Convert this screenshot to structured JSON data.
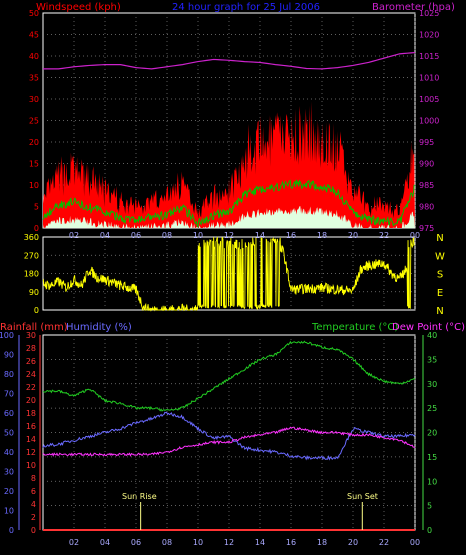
{
  "header": {
    "left_label": "Windspeed (kph)",
    "center_label": "24 hour graph for 25 Jul 2006",
    "right_label": "Barometer (hpa)"
  },
  "colors": {
    "background": "#000000",
    "frame": "#FFFFFF",
    "grid": "#808080",
    "wind": "#FF0000",
    "gust_fill": "#FF0000",
    "wind_avg": "#00C000",
    "wind_min": "#E0FFE0",
    "barometer": "#CC22CC",
    "direction": "#FFFF00",
    "rainfall": "#FF3333",
    "humidity": "#6A6AFF",
    "temperature": "#22CC22",
    "dew_point": "#FF33FF",
    "center_label": "#2222FF",
    "sun_marker": "#FFFF88",
    "temp_axis": "#44DD44"
  },
  "time_ticks": [
    "02",
    "04",
    "06",
    "08",
    "10",
    "12",
    "14",
    "16",
    "18",
    "20",
    "22",
    "00"
  ],
  "panel_top": {
    "left_ticks": [
      "0",
      "5",
      "10",
      "15",
      "20",
      "25",
      "30",
      "35",
      "40",
      "45",
      "50"
    ],
    "right_ticks": [
      "975",
      "980",
      "985",
      "990",
      "995",
      "1000",
      "1005",
      "1010",
      "1015",
      "1020",
      "1025"
    ]
  },
  "panel_mid": {
    "left_ticks": [
      "0",
      "90",
      "180",
      "270",
      "360"
    ],
    "direction_letters": [
      "N",
      "W",
      "S",
      "E",
      "N"
    ]
  },
  "panel_bottom": {
    "rain_label": "Rainfall (mm)",
    "humidity_label": "Humidity (%)",
    "temp_label": "Temperature (°C)",
    "dew_label": "Dew Point (°C)",
    "rain_ticks": [
      "0",
      "2",
      "4",
      "6",
      "8",
      "10",
      "12",
      "14",
      "16",
      "18",
      "20",
      "22",
      "24",
      "26",
      "28",
      "30"
    ],
    "humidity_ticks": [
      "0",
      "10",
      "20",
      "30",
      "40",
      "50",
      "60",
      "70",
      "80",
      "90",
      "100"
    ],
    "temp_ticks": [
      "0",
      "5",
      "10",
      "15",
      "20",
      "25",
      "30",
      "35",
      "40"
    ],
    "sun_rise": "Sun Rise",
    "sun_set": "Sun Set"
  },
  "chart_data": [
    {
      "type": "area",
      "name": "wind_barometer",
      "x_hours": [
        0,
        1,
        2,
        3,
        4,
        5,
        6,
        7,
        8,
        9,
        10,
        11,
        12,
        13,
        14,
        15,
        16,
        17,
        18,
        19,
        20,
        21,
        22,
        23,
        24
      ],
      "series": [
        {
          "name": "Windspeed (kph)",
          "axis": "left",
          "values": [
            4,
            9,
            10,
            8,
            6,
            4,
            3,
            4,
            5,
            8,
            2,
            5,
            6,
            13,
            15,
            16,
            17,
            17,
            16,
            14,
            6,
            3,
            3,
            2,
            16
          ]
        },
        {
          "name": "Barometer (hpa)",
          "axis": "right",
          "values": [
            1012,
            1012,
            1012.5,
            1012.8,
            1013,
            1013,
            1012.3,
            1012,
            1012.5,
            1013,
            1013.7,
            1014.2,
            1014,
            1013.7,
            1013.5,
            1013,
            1012.6,
            1012.1,
            1012,
            1012.3,
            1012.8,
            1013.5,
            1014.5,
            1015.5,
            1015.8
          ]
        }
      ],
      "ylim_left": [
        0,
        50
      ],
      "ylim_right": [
        975,
        1025
      ]
    },
    {
      "type": "line",
      "name": "wind_direction",
      "x_hours": [
        0,
        0.5,
        1,
        1.5,
        2,
        2.5,
        3,
        3.5,
        4,
        5,
        6,
        6.5,
        7,
        7.5,
        8,
        8.5,
        9,
        9.5,
        10,
        14,
        14.5,
        15,
        15.5,
        16,
        17,
        18,
        19,
        20,
        20.5,
        21,
        22,
        22.5,
        23,
        23.5,
        24
      ],
      "values": [
        130,
        120,
        140,
        110,
        150,
        120,
        200,
        160,
        150,
        120,
        100,
        10,
        0,
        0,
        0,
        0,
        5,
        0,
        10,
        15,
        20,
        310,
        290,
        100,
        105,
        110,
        100,
        95,
        200,
        220,
        230,
        180,
        150,
        210,
        50
      ],
      "ylim": [
        0,
        360
      ]
    },
    {
      "type": "line",
      "name": "climate",
      "x_hours": [
        0,
        1,
        2,
        3,
        4,
        5,
        6,
        7,
        8,
        9,
        10,
        11,
        12,
        13,
        14,
        15,
        16,
        17,
        18,
        19,
        20,
        21,
        22,
        23,
        24
      ],
      "series": [
        {
          "name": "Rainfall (mm)",
          "axis": "rain",
          "values": [
            0,
            0,
            0,
            0,
            0,
            0,
            0,
            0,
            0,
            0,
            0,
            0,
            0,
            0,
            0,
            0,
            0,
            0,
            0,
            0,
            0,
            0,
            0,
            0,
            0
          ]
        },
        {
          "name": "Humidity (%)",
          "axis": "humidity",
          "values": [
            43,
            44,
            46,
            48,
            50,
            52,
            55,
            57,
            60,
            58,
            52,
            47,
            48,
            42,
            41,
            40,
            38,
            37,
            37,
            37,
            52,
            50,
            48,
            48,
            49
          ]
        },
        {
          "name": "Temperature (°C)",
          "axis": "temp",
          "values": [
            28.5,
            28.5,
            27.5,
            29,
            26.5,
            26,
            25,
            25,
            24.5,
            25,
            27,
            29,
            31,
            33,
            35,
            36,
            38.5,
            38.5,
            37.5,
            37,
            35,
            32,
            30.5,
            30,
            31
          ]
        },
        {
          "name": "Dew Point (°C)",
          "axis": "temp",
          "values": [
            15.5,
            15.5,
            15.5,
            15.5,
            15.5,
            15.5,
            15.5,
            15.5,
            16,
            17,
            17.5,
            18,
            18,
            19,
            19.5,
            20,
            21,
            20.5,
            20,
            20,
            19.5,
            19.5,
            19,
            18.5,
            17
          ]
        }
      ],
      "ylim_rain": [
        0,
        30
      ],
      "ylim_humidity": [
        0,
        100
      ],
      "ylim_temp": [
        0,
        40
      ],
      "sun_rise_hour": 6.3,
      "sun_set_hour": 20.6
    }
  ]
}
